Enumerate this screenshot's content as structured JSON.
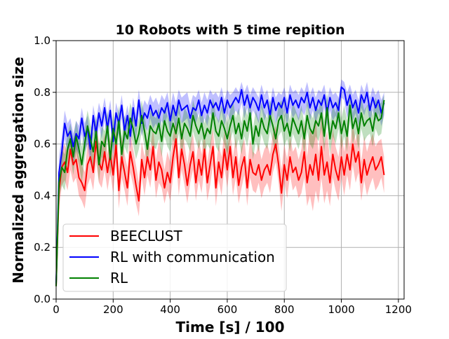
{
  "chart_data": {
    "type": "line",
    "title": "10 Robots with 5 time repition",
    "xlabel": "Time [s] / 100",
    "ylabel": "Normalized aggregation size",
    "xlim": [
      0,
      1220
    ],
    "ylim": [
      0.0,
      1.0
    ],
    "xticks": [
      "0",
      "200",
      "400",
      "600",
      "800",
      "1000",
      "1200"
    ],
    "xtick_values": [
      0,
      200,
      400,
      600,
      800,
      1000,
      1200
    ],
    "yticks": [
      "0.0",
      "0.2",
      "0.4",
      "0.6",
      "0.8",
      "1.0"
    ],
    "ytick_values": [
      0.0,
      0.2,
      0.4,
      0.6,
      0.8,
      1.0
    ],
    "grid": true,
    "legend_position": "lower-left",
    "x_start": 0,
    "x_step": 10,
    "series": [
      {
        "name": "BEECLUST",
        "color": "#ff0000",
        "values": [
          0.05,
          0.42,
          0.51,
          0.53,
          0.49,
          0.58,
          0.52,
          0.54,
          0.47,
          0.45,
          0.42,
          0.52,
          0.55,
          0.49,
          0.61,
          0.53,
          0.5,
          0.57,
          0.49,
          0.56,
          0.48,
          0.6,
          0.42,
          0.55,
          0.49,
          0.43,
          0.57,
          0.51,
          0.44,
          0.38,
          0.54,
          0.47,
          0.55,
          0.5,
          0.59,
          0.46,
          0.53,
          0.5,
          0.43,
          0.49,
          0.45,
          0.55,
          0.62,
          0.47,
          0.58,
          0.52,
          0.44,
          0.52,
          0.57,
          0.45,
          0.54,
          0.48,
          0.58,
          0.45,
          0.52,
          0.59,
          0.43,
          0.53,
          0.47,
          0.58,
          0.5,
          0.59,
          0.47,
          0.55,
          0.44,
          0.51,
          0.55,
          0.43,
          0.54,
          0.49,
          0.48,
          0.52,
          0.46,
          0.5,
          0.52,
          0.48,
          0.56,
          0.6,
          0.52,
          0.41,
          0.52,
          0.46,
          0.55,
          0.49,
          0.51,
          0.46,
          0.49,
          0.57,
          0.45,
          0.52,
          0.48,
          0.56,
          0.46,
          0.59,
          0.48,
          0.53,
          0.45,
          0.56,
          0.5,
          0.46,
          0.55,
          0.48,
          0.56,
          0.5,
          0.6,
          0.53,
          0.57,
          0.45,
          0.54,
          0.48,
          0.52,
          0.55,
          0.5,
          0.52,
          0.55,
          0.48
        ],
        "band_upper": [
          0.1,
          0.5,
          0.58,
          0.6,
          0.56,
          0.66,
          0.6,
          0.62,
          0.55,
          0.52,
          0.49,
          0.6,
          0.63,
          0.56,
          0.68,
          0.61,
          0.58,
          0.64,
          0.56,
          0.63,
          0.55,
          0.67,
          0.5,
          0.63,
          0.56,
          0.51,
          0.65,
          0.58,
          0.52,
          0.45,
          0.61,
          0.55,
          0.62,
          0.58,
          0.66,
          0.54,
          0.61,
          0.57,
          0.5,
          0.57,
          0.53,
          0.63,
          0.69,
          0.55,
          0.66,
          0.6,
          0.52,
          0.6,
          0.64,
          0.53,
          0.62,
          0.56,
          0.65,
          0.53,
          0.6,
          0.66,
          0.51,
          0.6,
          0.55,
          0.65,
          0.58,
          0.66,
          0.55,
          0.63,
          0.52,
          0.59,
          0.62,
          0.51,
          0.62,
          0.57,
          0.56,
          0.6,
          0.54,
          0.58,
          0.6,
          0.56,
          0.64,
          0.67,
          0.6,
          0.5,
          0.6,
          0.54,
          0.63,
          0.57,
          0.59,
          0.54,
          0.58,
          0.68,
          0.55,
          0.66,
          0.63,
          0.71,
          0.56,
          0.72,
          0.6,
          0.65,
          0.54,
          0.66,
          0.59,
          0.55,
          0.64,
          0.57,
          0.65,
          0.59,
          0.68,
          0.61,
          0.66,
          0.53,
          0.63,
          0.57,
          0.61,
          0.64,
          0.59,
          0.61,
          0.62,
          0.55
        ],
        "band_lower": [
          0.02,
          0.35,
          0.44,
          0.46,
          0.42,
          0.5,
          0.45,
          0.47,
          0.4,
          0.38,
          0.35,
          0.44,
          0.47,
          0.42,
          0.53,
          0.45,
          0.43,
          0.5,
          0.42,
          0.49,
          0.41,
          0.53,
          0.35,
          0.47,
          0.42,
          0.36,
          0.49,
          0.44,
          0.37,
          0.32,
          0.47,
          0.4,
          0.48,
          0.43,
          0.52,
          0.39,
          0.45,
          0.43,
          0.37,
          0.42,
          0.38,
          0.47,
          0.55,
          0.4,
          0.5,
          0.44,
          0.37,
          0.45,
          0.5,
          0.38,
          0.46,
          0.41,
          0.51,
          0.38,
          0.44,
          0.52,
          0.36,
          0.46,
          0.4,
          0.51,
          0.43,
          0.52,
          0.4,
          0.47,
          0.37,
          0.43,
          0.48,
          0.36,
          0.47,
          0.42,
          0.41,
          0.45,
          0.39,
          0.43,
          0.45,
          0.41,
          0.49,
          0.53,
          0.45,
          0.34,
          0.45,
          0.39,
          0.48,
          0.42,
          0.44,
          0.39,
          0.41,
          0.47,
          0.36,
          0.4,
          0.34,
          0.42,
          0.37,
          0.47,
          0.37,
          0.42,
          0.36,
          0.47,
          0.42,
          0.38,
          0.47,
          0.4,
          0.48,
          0.42,
          0.52,
          0.45,
          0.49,
          0.38,
          0.46,
          0.4,
          0.44,
          0.47,
          0.42,
          0.44,
          0.47,
          0.41
        ]
      },
      {
        "name": "RL with communication",
        "color": "#0000ff",
        "values": [
          0.06,
          0.49,
          0.57,
          0.68,
          0.63,
          0.65,
          0.59,
          0.64,
          0.62,
          0.7,
          0.63,
          0.66,
          0.58,
          0.71,
          0.64,
          0.72,
          0.67,
          0.74,
          0.66,
          0.73,
          0.61,
          0.72,
          0.68,
          0.75,
          0.65,
          0.71,
          0.63,
          0.74,
          0.67,
          0.77,
          0.68,
          0.72,
          0.7,
          0.75,
          0.71,
          0.73,
          0.7,
          0.74,
          0.72,
          0.76,
          0.69,
          0.75,
          0.71,
          0.77,
          0.73,
          0.74,
          0.75,
          0.7,
          0.74,
          0.73,
          0.77,
          0.71,
          0.75,
          0.72,
          0.77,
          0.74,
          0.76,
          0.73,
          0.78,
          0.72,
          0.77,
          0.74,
          0.76,
          0.78,
          0.76,
          0.81,
          0.75,
          0.79,
          0.74,
          0.78,
          0.76,
          0.73,
          0.79,
          0.74,
          0.77,
          0.71,
          0.78,
          0.73,
          0.76,
          0.74,
          0.78,
          0.72,
          0.79,
          0.75,
          0.77,
          0.74,
          0.78,
          0.76,
          0.8,
          0.74,
          0.78,
          0.73,
          0.77,
          0.75,
          0.79,
          0.72,
          0.78,
          0.74,
          0.76,
          0.73,
          0.82,
          0.81,
          0.75,
          0.79,
          0.74,
          0.77,
          0.72,
          0.79,
          0.76,
          0.8,
          0.73,
          0.78,
          0.74,
          0.77,
          0.72,
          0.76
        ],
        "band_upper": [
          0.1,
          0.55,
          0.63,
          0.73,
          0.68,
          0.7,
          0.64,
          0.69,
          0.67,
          0.74,
          0.68,
          0.71,
          0.63,
          0.75,
          0.69,
          0.76,
          0.72,
          0.78,
          0.71,
          0.77,
          0.66,
          0.76,
          0.72,
          0.79,
          0.7,
          0.75,
          0.68,
          0.78,
          0.72,
          0.81,
          0.73,
          0.77,
          0.75,
          0.79,
          0.76,
          0.78,
          0.75,
          0.79,
          0.77,
          0.8,
          0.74,
          0.8,
          0.76,
          0.81,
          0.78,
          0.79,
          0.8,
          0.75,
          0.79,
          0.78,
          0.81,
          0.76,
          0.8,
          0.77,
          0.81,
          0.79,
          0.8,
          0.78,
          0.82,
          0.77,
          0.81,
          0.79,
          0.8,
          0.82,
          0.8,
          0.84,
          0.8,
          0.83,
          0.79,
          0.82,
          0.8,
          0.78,
          0.83,
          0.79,
          0.81,
          0.76,
          0.82,
          0.78,
          0.8,
          0.79,
          0.82,
          0.77,
          0.83,
          0.8,
          0.81,
          0.79,
          0.82,
          0.8,
          0.84,
          0.79,
          0.82,
          0.78,
          0.81,
          0.8,
          0.83,
          0.77,
          0.82,
          0.79,
          0.8,
          0.78,
          0.85,
          0.84,
          0.8,
          0.83,
          0.79,
          0.81,
          0.77,
          0.83,
          0.8,
          0.84,
          0.78,
          0.82,
          0.79,
          0.81,
          0.77,
          0.8
        ],
        "band_lower": [
          0.03,
          0.43,
          0.51,
          0.62,
          0.57,
          0.59,
          0.53,
          0.58,
          0.56,
          0.64,
          0.57,
          0.6,
          0.52,
          0.66,
          0.58,
          0.67,
          0.62,
          0.69,
          0.61,
          0.68,
          0.56,
          0.67,
          0.63,
          0.7,
          0.6,
          0.66,
          0.58,
          0.69,
          0.62,
          0.72,
          0.63,
          0.67,
          0.65,
          0.7,
          0.66,
          0.68,
          0.65,
          0.69,
          0.67,
          0.71,
          0.64,
          0.7,
          0.66,
          0.72,
          0.68,
          0.69,
          0.7,
          0.65,
          0.69,
          0.68,
          0.72,
          0.66,
          0.7,
          0.67,
          0.72,
          0.69,
          0.71,
          0.68,
          0.73,
          0.67,
          0.72,
          0.69,
          0.71,
          0.73,
          0.71,
          0.76,
          0.7,
          0.74,
          0.69,
          0.73,
          0.71,
          0.68,
          0.74,
          0.69,
          0.72,
          0.66,
          0.73,
          0.68,
          0.71,
          0.69,
          0.73,
          0.67,
          0.74,
          0.7,
          0.72,
          0.69,
          0.73,
          0.71,
          0.75,
          0.69,
          0.73,
          0.68,
          0.72,
          0.7,
          0.74,
          0.67,
          0.73,
          0.69,
          0.71,
          0.68,
          0.78,
          0.77,
          0.7,
          0.74,
          0.69,
          0.72,
          0.67,
          0.74,
          0.71,
          0.75,
          0.68,
          0.73,
          0.69,
          0.72,
          0.67,
          0.71
        ]
      },
      {
        "name": "RL",
        "color": "#008000",
        "values": [
          0.05,
          0.45,
          0.51,
          0.49,
          0.58,
          0.62,
          0.55,
          0.63,
          0.58,
          0.52,
          0.6,
          0.67,
          0.62,
          0.57,
          0.65,
          0.52,
          0.61,
          0.59,
          0.67,
          0.54,
          0.66,
          0.6,
          0.69,
          0.56,
          0.65,
          0.62,
          0.7,
          0.66,
          0.6,
          0.64,
          0.71,
          0.65,
          0.58,
          0.67,
          0.65,
          0.64,
          0.68,
          0.61,
          0.69,
          0.65,
          0.63,
          0.68,
          0.64,
          0.7,
          0.62,
          0.68,
          0.66,
          0.63,
          0.71,
          0.67,
          0.64,
          0.68,
          0.62,
          0.66,
          0.64,
          0.72,
          0.65,
          0.63,
          0.69,
          0.66,
          0.62,
          0.67,
          0.71,
          0.64,
          0.68,
          0.62,
          0.69,
          0.65,
          0.72,
          0.6,
          0.67,
          0.63,
          0.7,
          0.66,
          0.64,
          0.71,
          0.67,
          0.62,
          0.69,
          0.71,
          0.65,
          0.68,
          0.63,
          0.7,
          0.67,
          0.64,
          0.69,
          0.62,
          0.71,
          0.66,
          0.64,
          0.69,
          0.67,
          0.72,
          0.63,
          0.74,
          0.62,
          0.69,
          0.66,
          0.72,
          0.64,
          0.69,
          0.63,
          0.75,
          0.66,
          0.7,
          0.64,
          0.72,
          0.67,
          0.69,
          0.7,
          0.65,
          0.72,
          0.69,
          0.7,
          0.77
        ],
        "band_upper": [
          0.1,
          0.51,
          0.58,
          0.56,
          0.64,
          0.68,
          0.62,
          0.69,
          0.64,
          0.59,
          0.66,
          0.73,
          0.68,
          0.64,
          0.71,
          0.59,
          0.67,
          0.65,
          0.73,
          0.61,
          0.72,
          0.66,
          0.75,
          0.63,
          0.71,
          0.68,
          0.76,
          0.72,
          0.66,
          0.7,
          0.77,
          0.71,
          0.64,
          0.73,
          0.71,
          0.7,
          0.74,
          0.67,
          0.75,
          0.71,
          0.69,
          0.74,
          0.7,
          0.76,
          0.68,
          0.74,
          0.72,
          0.69,
          0.77,
          0.73,
          0.7,
          0.74,
          0.68,
          0.72,
          0.7,
          0.78,
          0.71,
          0.69,
          0.75,
          0.72,
          0.68,
          0.73,
          0.77,
          0.7,
          0.74,
          0.68,
          0.75,
          0.71,
          0.78,
          0.66,
          0.73,
          0.69,
          0.76,
          0.72,
          0.7,
          0.77,
          0.73,
          0.68,
          0.75,
          0.77,
          0.71,
          0.74,
          0.69,
          0.76,
          0.73,
          0.7,
          0.75,
          0.68,
          0.77,
          0.72,
          0.7,
          0.75,
          0.73,
          0.78,
          0.69,
          0.8,
          0.68,
          0.75,
          0.72,
          0.78,
          0.7,
          0.75,
          0.69,
          0.81,
          0.72,
          0.76,
          0.7,
          0.78,
          0.73,
          0.75,
          0.76,
          0.71,
          0.78,
          0.75,
          0.76,
          0.79
        ],
        "band_lower": [
          0.02,
          0.39,
          0.44,
          0.42,
          0.52,
          0.56,
          0.48,
          0.57,
          0.52,
          0.45,
          0.54,
          0.61,
          0.56,
          0.5,
          0.59,
          0.45,
          0.55,
          0.53,
          0.61,
          0.47,
          0.6,
          0.54,
          0.63,
          0.49,
          0.59,
          0.56,
          0.64,
          0.6,
          0.54,
          0.58,
          0.65,
          0.59,
          0.52,
          0.61,
          0.59,
          0.58,
          0.62,
          0.55,
          0.63,
          0.59,
          0.57,
          0.62,
          0.58,
          0.64,
          0.56,
          0.62,
          0.6,
          0.57,
          0.65,
          0.61,
          0.58,
          0.62,
          0.56,
          0.6,
          0.58,
          0.66,
          0.59,
          0.57,
          0.63,
          0.6,
          0.56,
          0.61,
          0.65,
          0.58,
          0.62,
          0.56,
          0.63,
          0.59,
          0.66,
          0.54,
          0.61,
          0.57,
          0.64,
          0.6,
          0.58,
          0.65,
          0.61,
          0.56,
          0.63,
          0.65,
          0.59,
          0.62,
          0.57,
          0.64,
          0.61,
          0.58,
          0.63,
          0.56,
          0.65,
          0.6,
          0.58,
          0.63,
          0.61,
          0.66,
          0.57,
          0.68,
          0.56,
          0.63,
          0.6,
          0.66,
          0.58,
          0.63,
          0.57,
          0.69,
          0.6,
          0.64,
          0.58,
          0.66,
          0.61,
          0.63,
          0.64,
          0.59,
          0.66,
          0.63,
          0.64,
          0.72
        ]
      }
    ]
  }
}
